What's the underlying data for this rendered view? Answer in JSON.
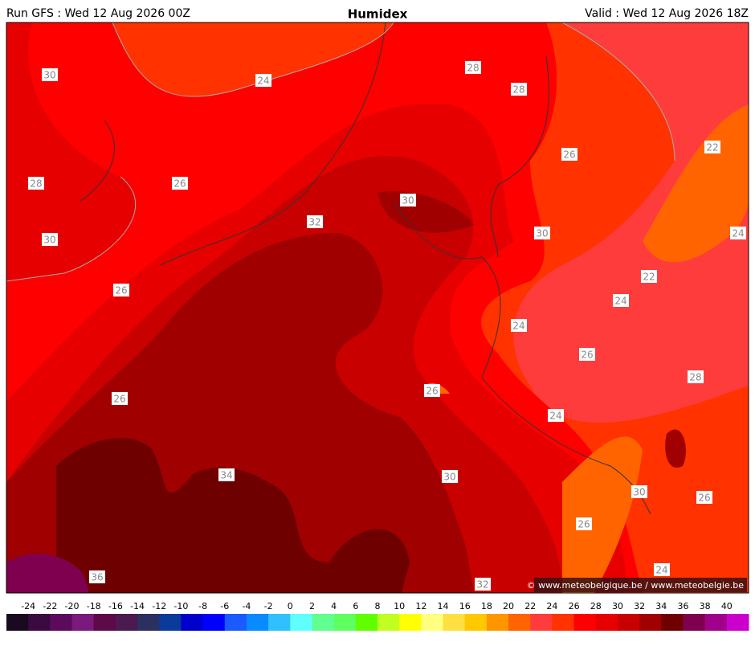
{
  "header": {
    "run": "Run GFS : Wed 12 Aug 2026 00Z",
    "title": "Humidex",
    "valid": "Valid : Wed 12 Aug 2026 18Z"
  },
  "contour_labels": [
    30,
    24,
    28,
    28,
    28,
    26,
    30,
    26,
    22,
    30,
    32,
    30,
    24,
    22,
    26,
    24,
    24,
    26,
    28,
    26,
    26,
    24,
    34,
    30,
    30,
    26,
    26,
    36,
    24,
    32
  ],
  "colorbar": {
    "ticks": [
      -24,
      -22,
      -20,
      -18,
      -16,
      -14,
      -12,
      -10,
      -8,
      -6,
      -4,
      -2,
      0,
      2,
      4,
      6,
      8,
      10,
      12,
      14,
      16,
      18,
      20,
      22,
      24,
      26,
      28,
      30,
      32,
      34,
      36,
      38,
      40
    ],
    "colors": [
      "#1a0a1f",
      "#3a0a40",
      "#5c0a5c",
      "#7a1a7a",
      "#5c0a48",
      "#4a1a50",
      "#2a3060",
      "#0a3a9a",
      "#0000cc",
      "#0000ff",
      "#1a5aff",
      "#0a8aff",
      "#30c0ff",
      "#60ffff",
      "#60ff90",
      "#60ff60",
      "#60ff00",
      "#c0ff20",
      "#ffff00",
      "#ffff80",
      "#ffe040",
      "#ffc800",
      "#ff9600",
      "#ff6400",
      "#ff3c3c",
      "#ff3200",
      "#ff0000",
      "#e60000",
      "#c80000",
      "#a00000",
      "#6e0000",
      "#800050",
      "#a0008a",
      "#cc00cc"
    ]
  },
  "credit": "© www.meteobelgique.be / www.meteobelgie.be"
}
